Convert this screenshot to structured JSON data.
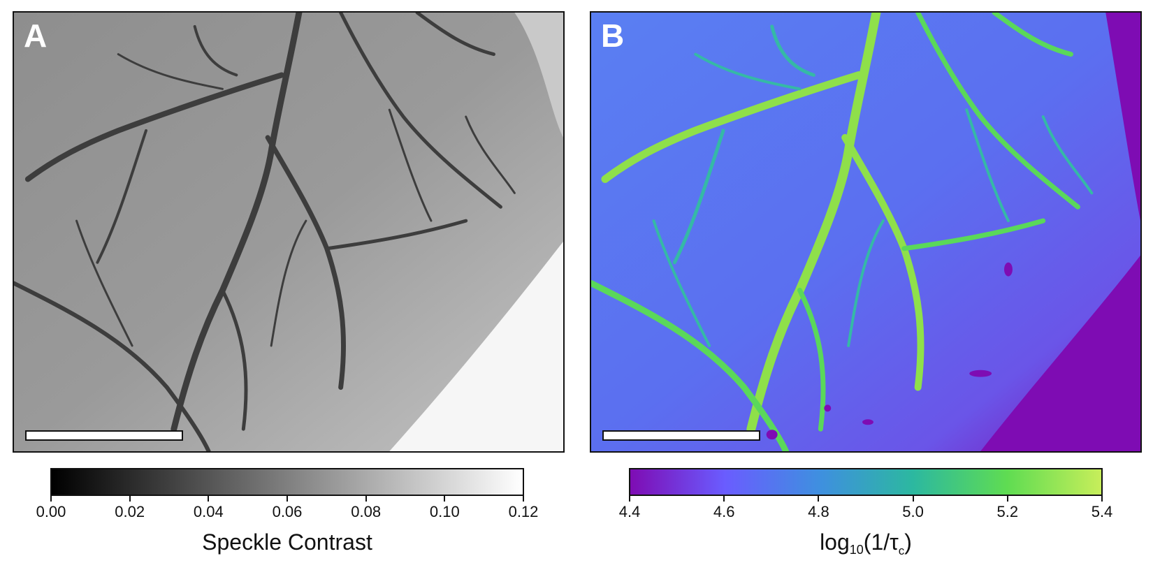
{
  "panel_a": {
    "letter": "A",
    "colorbar_label": "Speckle Contrast",
    "colorbar_ticks": [
      "0.00",
      "0.02",
      "0.04",
      "0.06",
      "0.08",
      "0.10",
      "0.12"
    ],
    "colormap": [
      "#000000",
      "#ffffff"
    ]
  },
  "panel_b": {
    "letter": "B",
    "colorbar_label_prefix": "log",
    "colorbar_label_base": "10",
    "colorbar_label_body": "(1/τ",
    "colorbar_label_sub": "c",
    "colorbar_label_suffix": ")",
    "colorbar_ticks": [
      "4.4",
      "4.6",
      "4.8",
      "5.0",
      "5.2",
      "5.4"
    ],
    "colormap": [
      "#7e0cb3",
      "#6a5cff",
      "#3f8fe0",
      "#2cb8a0",
      "#5fdc52",
      "#c7ee5a"
    ]
  }
}
